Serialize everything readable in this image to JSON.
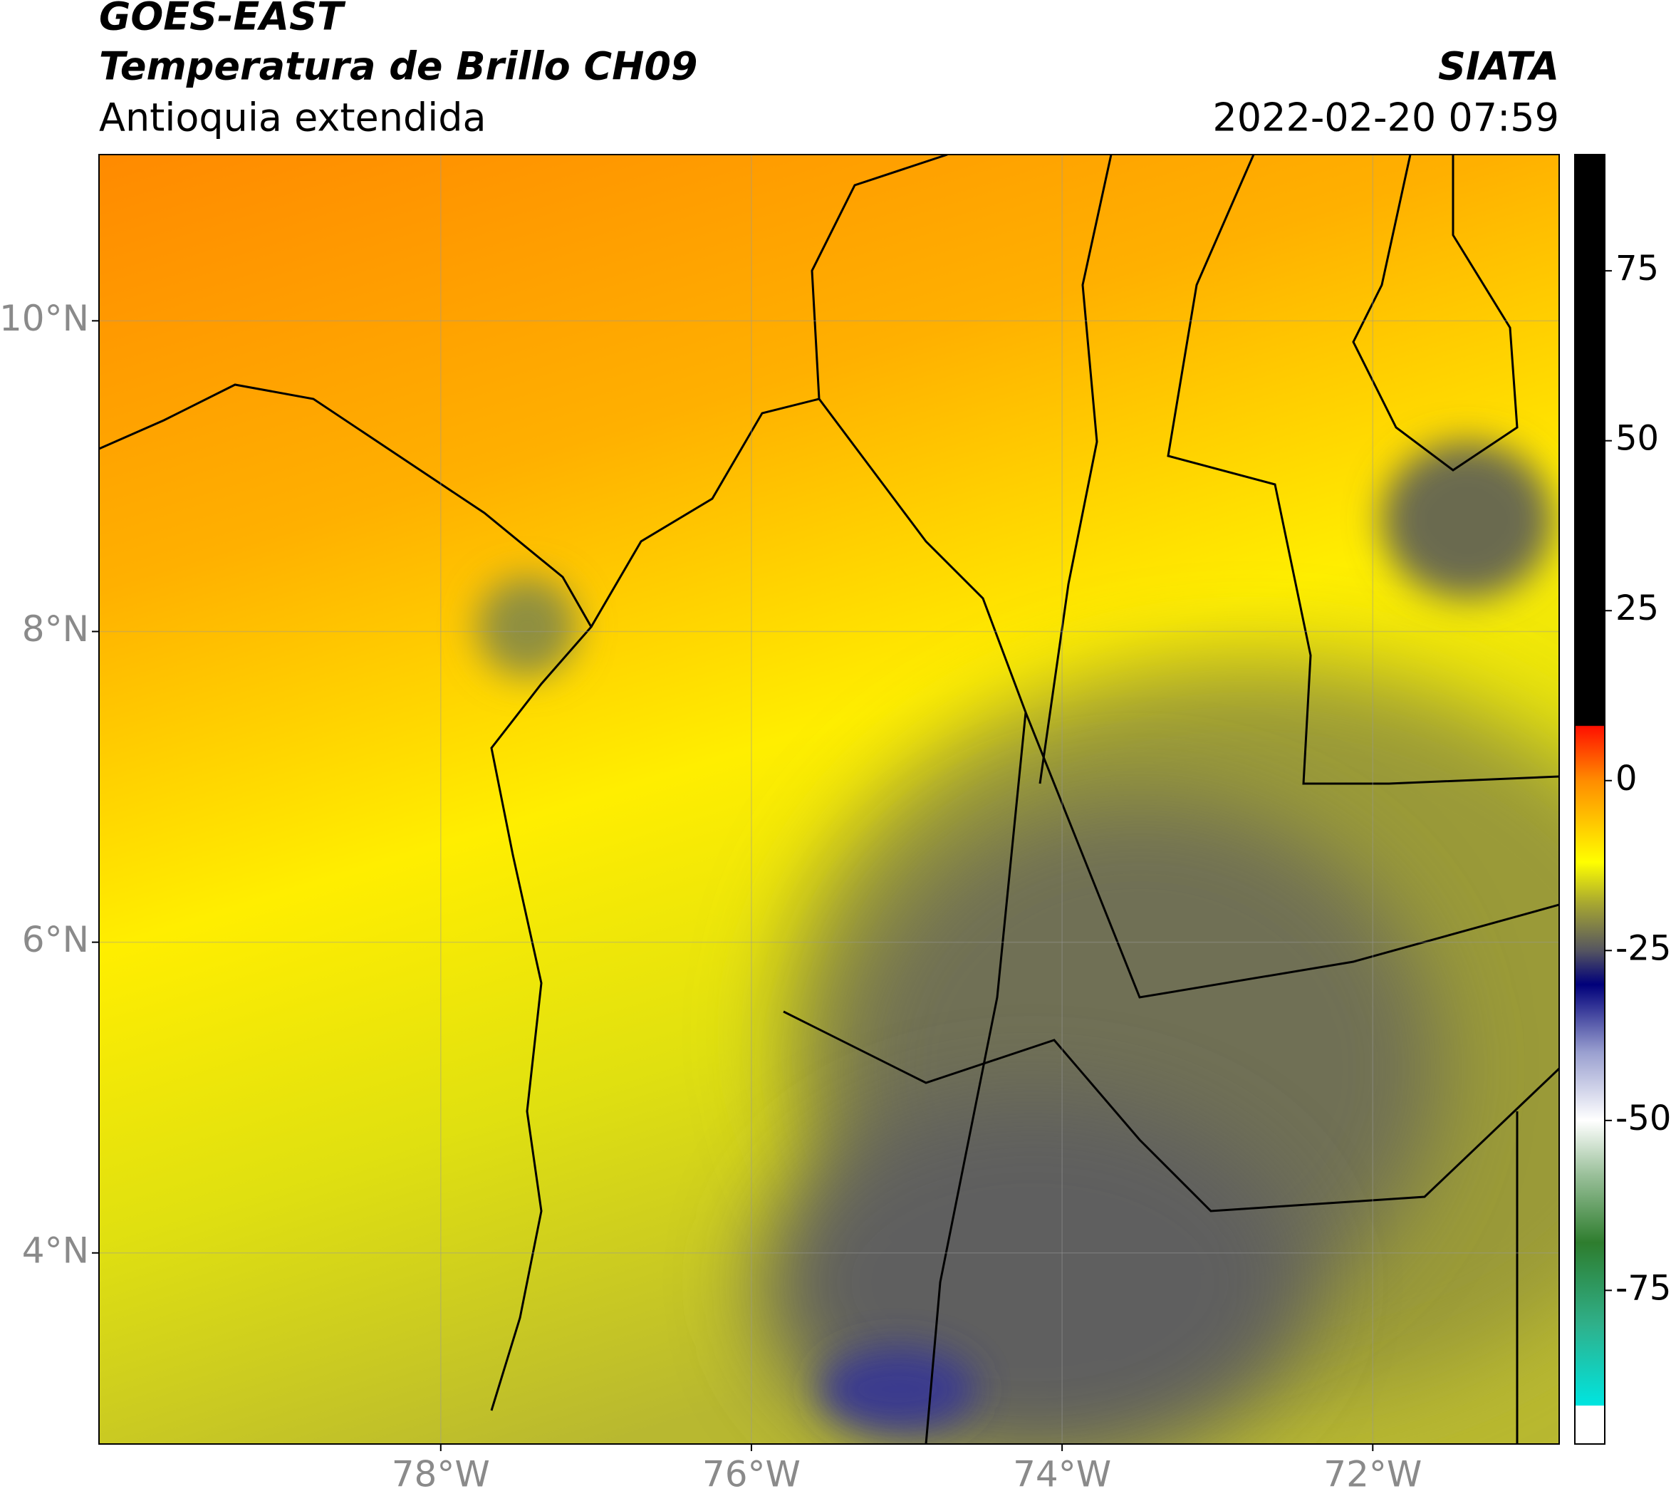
{
  "header": {
    "title_1": "GOES-EAST",
    "title_2": "Temperatura de Brillo CH09",
    "subtitle": "Antioquia extendida",
    "source": "SIATA",
    "datetime": "2022-02-20 07:59"
  },
  "map": {
    "xlim": [
      -80.2,
      -70.8
    ],
    "ylim": [
      2.77,
      11.07
    ],
    "grid": true,
    "xticks": [
      {
        "value": -78,
        "label": "78°W"
      },
      {
        "value": -76,
        "label": "76°W"
      },
      {
        "value": -74,
        "label": "74°W"
      },
      {
        "value": -72,
        "label": "72°W"
      }
    ],
    "yticks": [
      {
        "value": 4,
        "label": "4°N"
      },
      {
        "value": 6,
        "label": "6°N"
      },
      {
        "value": 8,
        "label": "8°N"
      },
      {
        "value": 10,
        "label": "10°N"
      }
    ]
  },
  "colorbar": {
    "lim": [
      -97.6,
      92.1
    ],
    "ticks": [
      -75,
      -50,
      -25,
      0,
      25,
      50,
      75
    ],
    "stops": [
      {
        "value": -97.6,
        "color": "#ffffff"
      },
      {
        "value": -92,
        "color": "#ffffff"
      },
      {
        "value": -91.9,
        "color": "#00e5e0"
      },
      {
        "value": -80,
        "color": "#2fb08a"
      },
      {
        "value": -68,
        "color": "#2e7d2e"
      },
      {
        "value": -58,
        "color": "#9ac09a"
      },
      {
        "value": -50,
        "color": "#ffffff"
      },
      {
        "value": -40,
        "color": "#9aa0d0"
      },
      {
        "value": -30,
        "color": "#00007a"
      },
      {
        "value": -25,
        "color": "#555560"
      },
      {
        "value": -18,
        "color": "#a8a830"
      },
      {
        "value": -12,
        "color": "#ffff00"
      },
      {
        "value": 0,
        "color": "#ff8c00"
      },
      {
        "value": 8,
        "color": "#ff1000"
      },
      {
        "value": 8.1,
        "color": "#000000"
      },
      {
        "value": 92.1,
        "color": "#000000"
      }
    ]
  }
}
